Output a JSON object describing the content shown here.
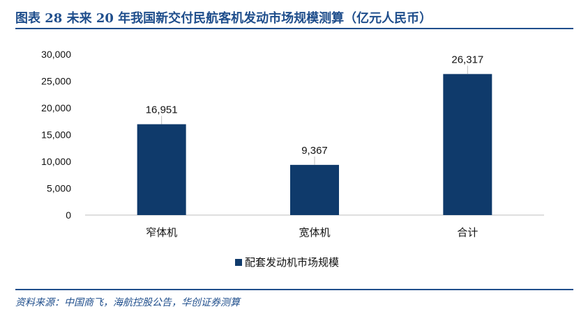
{
  "header": {
    "title": "图表 28  未来 20 年我国新交付民航客机发动市场规模测算（亿元人民币）"
  },
  "footer": {
    "source": "资料来源：中国商飞，海航控股公告，华创证券测算"
  },
  "colors": {
    "bar": "#0f3a6b",
    "accent": "#1f4e8c",
    "axis": "#bfbfbf"
  },
  "chart_data": {
    "type": "bar",
    "categories": [
      "窄体机",
      "宽体机",
      "合计"
    ],
    "series": [
      {
        "name": "配套发动机市场规模",
        "values": [
          16951,
          9367,
          26317
        ]
      }
    ],
    "data_labels": [
      "16,951",
      "9,367",
      "26,317"
    ],
    "yticks": [
      0,
      5000,
      10000,
      15000,
      20000,
      25000,
      30000
    ],
    "ytick_labels": [
      "0",
      "5,000",
      "10,000",
      "15,000",
      "20,000",
      "25,000",
      "30,000"
    ],
    "ylim": [
      0,
      30000
    ],
    "grid": false,
    "legend": "bottom"
  }
}
